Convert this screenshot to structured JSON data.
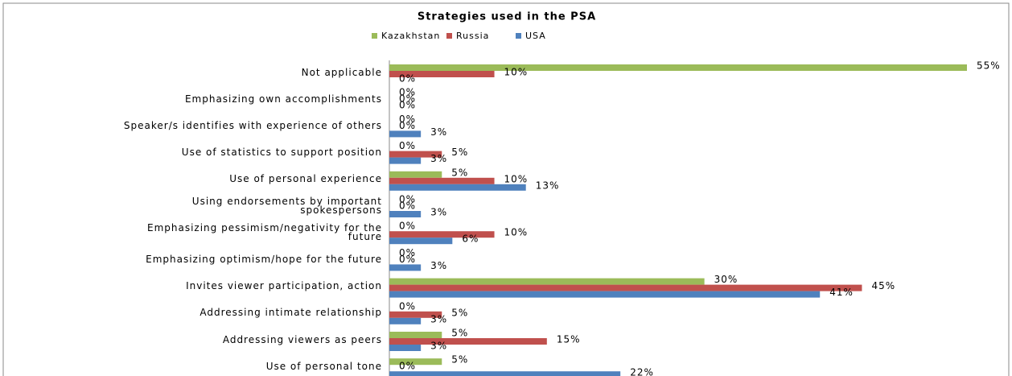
{
  "chart_data": {
    "type": "bar",
    "orientation": "horizontal",
    "title": "Strategies used in the PSA",
    "categories": [
      "Not applicable",
      "Emphasizing own accomplishments",
      "Speaker/s identifies with experience of others",
      "Use of statistics to support position",
      "Use of personal experience",
      "Using endorsements by important\nspokespersons",
      "Emphasizing pessimism/negativity for the\nfuture",
      "Emphasizing optimism/hope for the future",
      "Invites viewer participation, action",
      "Addressing intimate relationship",
      "Addressing viewers as peers",
      "Use of personal tone"
    ],
    "series": [
      {
        "name": "Kazakhstan",
        "color": "#9bbb59",
        "values": [
          55,
          0,
          0,
          0,
          5,
          0,
          0,
          0,
          30,
          0,
          5,
          5
        ],
        "value_labels": [
          "55%",
          "0%",
          "0%",
          "0%",
          "5%",
          "0%",
          "0%",
          "0%",
          "30%",
          "0%",
          "5%",
          "5%"
        ]
      },
      {
        "name": "Russia",
        "color": "#c0504d",
        "values": [
          10,
          0,
          0,
          5,
          10,
          0,
          10,
          0,
          45,
          5,
          15,
          0
        ],
        "value_labels": [
          "10%",
          "0%",
          "0%",
          "5%",
          "10%",
          "0%",
          "10%",
          "0%",
          "45%",
          "5%",
          "15%",
          "0%"
        ]
      },
      {
        "name": "USA",
        "color": "#4f81bd",
        "values": [
          0,
          0,
          3,
          3,
          13,
          3,
          6,
          3,
          41,
          3,
          3,
          22
        ],
        "value_labels": [
          "0%",
          "0%",
          "3%",
          "3%",
          "13%",
          "3%",
          "6%",
          "3%",
          "41%",
          "3%",
          "3%",
          "22%"
        ]
      }
    ],
    "legend": "top"
  }
}
